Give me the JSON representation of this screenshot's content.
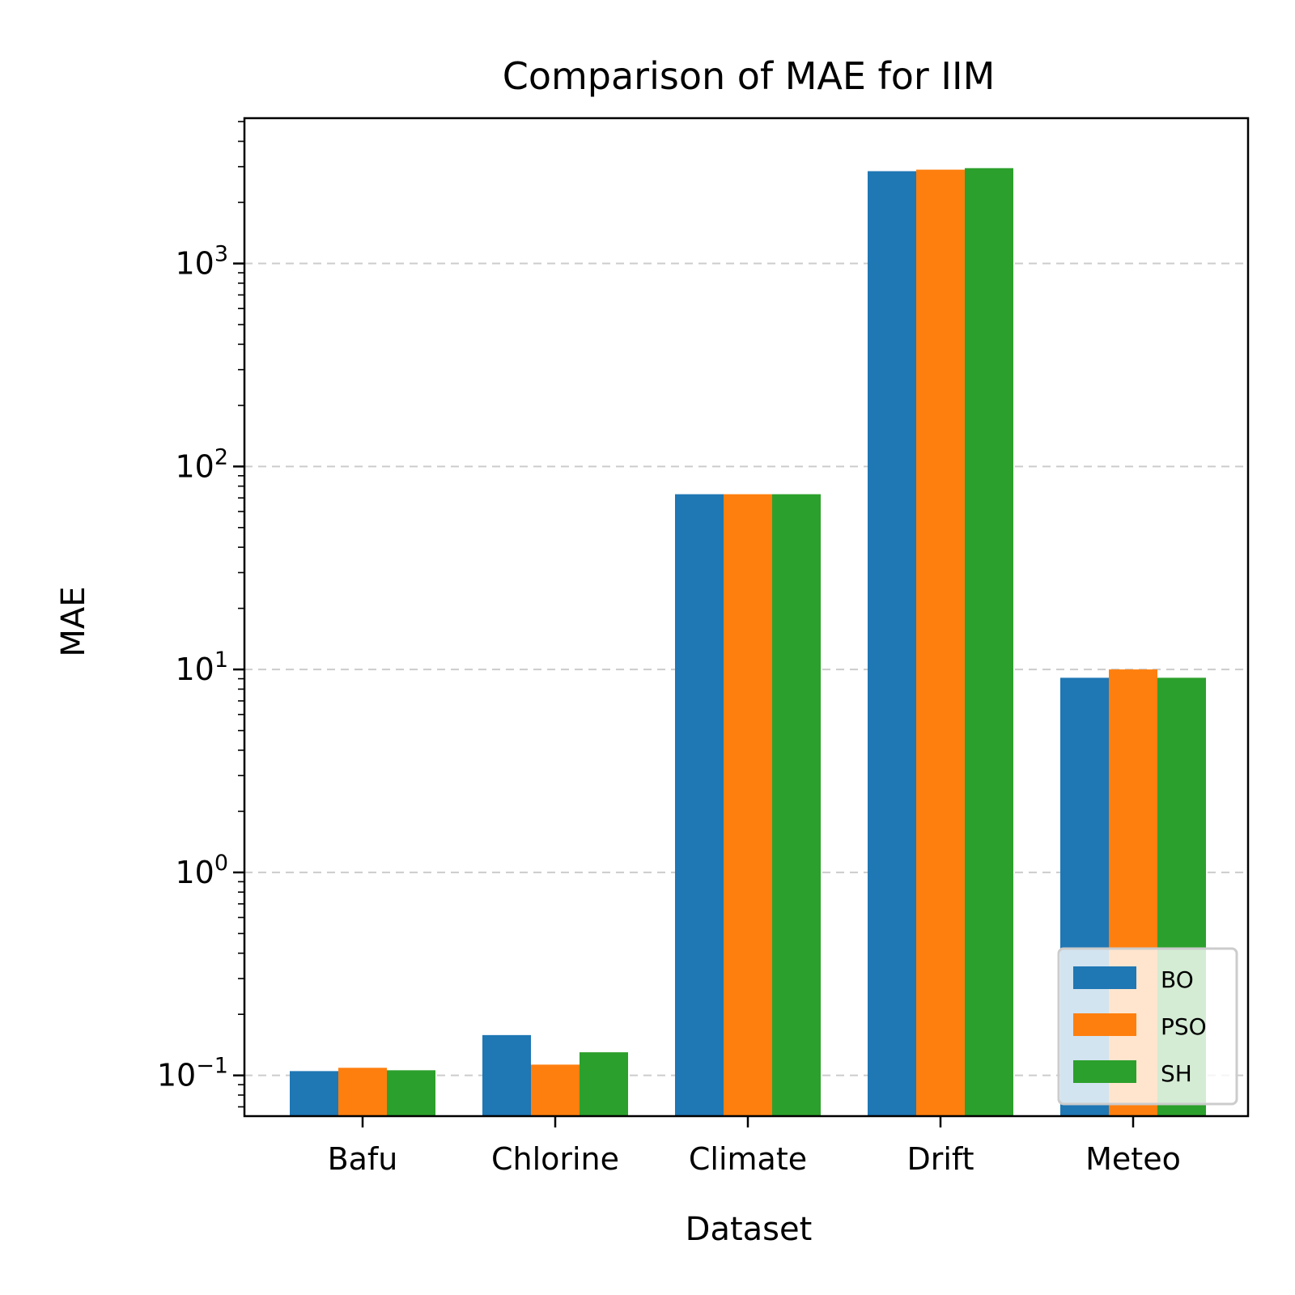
{
  "chart_data": {
    "type": "bar",
    "title": "Comparison of MAE for IIM",
    "xlabel": "Dataset",
    "ylabel": "MAE",
    "yscale": "log",
    "ylim": [
      0.063,
      5200
    ],
    "yticks": [
      {
        "value": 0.1,
        "base": "10",
        "exp": "−1"
      },
      {
        "value": 1,
        "base": "10",
        "exp": "0"
      },
      {
        "value": 10,
        "base": "10",
        "exp": "1"
      },
      {
        "value": 100,
        "base": "10",
        "exp": "2"
      },
      {
        "value": 1000,
        "base": "10",
        "exp": "3"
      }
    ],
    "grid": "y-major-dashed",
    "legend_position": "lower-right",
    "categories": [
      "Bafu",
      "Chlorine",
      "Climate",
      "Drift",
      "Meteo"
    ],
    "series": [
      {
        "name": "BO",
        "color": "#1f77b4",
        "values": [
          0.105,
          0.158,
          73.0,
          2850.0,
          9.1
        ]
      },
      {
        "name": "PSO",
        "color": "#ff7f0e",
        "values": [
          0.109,
          0.113,
          73.0,
          2900.0,
          10.0
        ]
      },
      {
        "name": "SH",
        "color": "#2ca02c",
        "values": [
          0.106,
          0.13,
          73.0,
          2950.0,
          9.1
        ]
      }
    ]
  }
}
